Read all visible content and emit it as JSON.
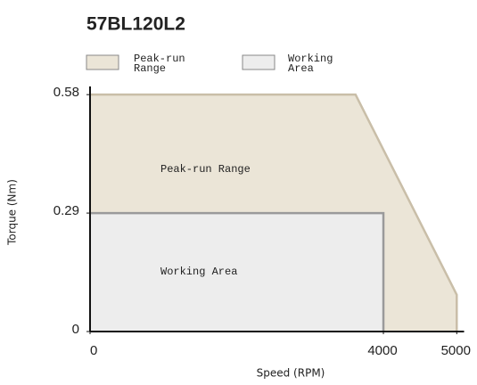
{
  "chart_data": {
    "type": "area",
    "title": "57BL120L2",
    "xlabel": "Speed (RPM)",
    "ylabel": "Torque (Nm)",
    "series": [
      {
        "name": "Peak-run Range",
        "color": "#ebe5d7",
        "edge": "#c9bea8",
        "x": [
          0,
          3620,
          5000,
          5000
        ],
        "values": [
          0.58,
          0.58,
          0.09,
          0
        ]
      },
      {
        "name": "Working Area",
        "color": "#ededed",
        "edge": "#9a9a9a",
        "x": [
          0,
          4000,
          4000
        ],
        "values": [
          0.29,
          0.29,
          0
        ]
      }
    ],
    "xlim": [
      0,
      5100
    ],
    "ylim": [
      0,
      0.6
    ],
    "xticks": [
      0,
      4000,
      5000
    ],
    "yticks": [
      0,
      0.29,
      0.58
    ]
  }
}
